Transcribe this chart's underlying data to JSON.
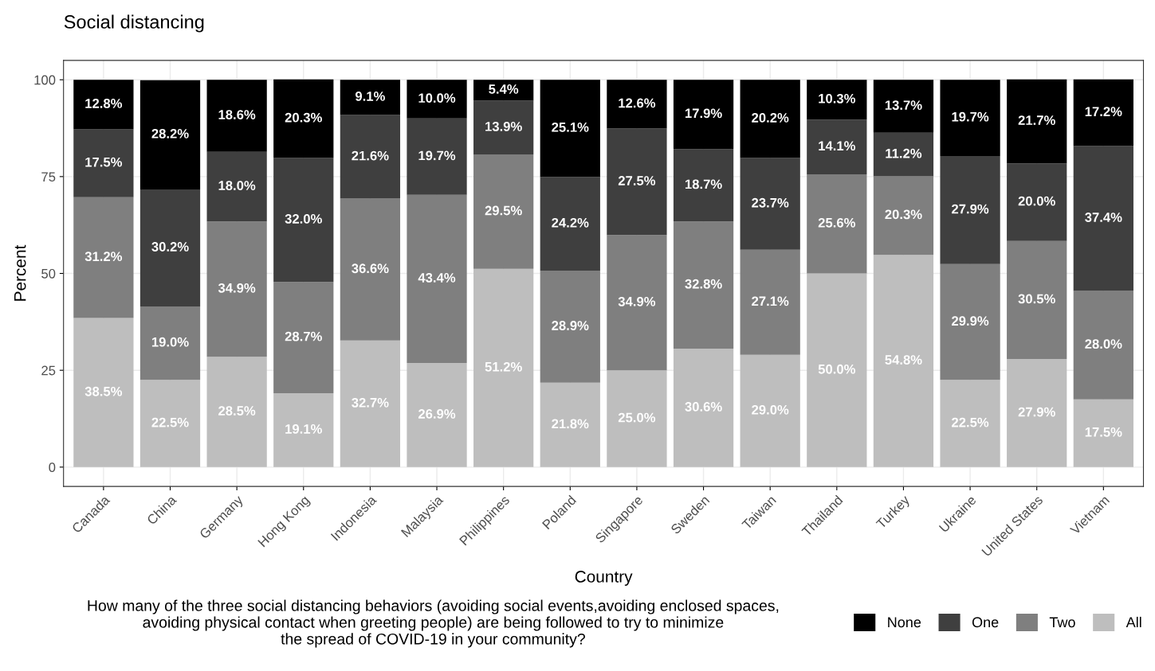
{
  "chart_data": {
    "type": "bar",
    "stacked": true,
    "title": "Social distancing",
    "xlabel": "Country",
    "ylabel": "Percent",
    "legend_title": "How many of the three social distancing behaviors (avoiding social events,avoiding enclosed spaces,\navoiding physical contact when greeting people) are being followed to try to minimize\nthe spread of COVID-19 in your community?",
    "categories": [
      "Canada",
      "China",
      "Germany",
      "Hong Kong",
      "Indonesia",
      "Malaysia",
      "Philippines",
      "Poland",
      "Singapore",
      "Sweden",
      "Taiwan",
      "Thailand",
      "Turkey",
      "Ukraine",
      "United States",
      "Vietnam"
    ],
    "series": [
      {
        "name": "All",
        "color": "#bebebe",
        "values": [
          38.5,
          22.5,
          28.5,
          19.1,
          32.7,
          26.9,
          51.2,
          21.8,
          25.0,
          30.6,
          29.0,
          50.0,
          54.8,
          22.5,
          27.9,
          17.5
        ],
        "value_labels": [
          "38.5%",
          "22.5%",
          "28.5%",
          "19.1%",
          "32.7%",
          "26.9%",
          "51.2%",
          "21.8%",
          "25.0%",
          "30.6%",
          "29.0%",
          "50.0%",
          "54.8%",
          "22.5%",
          "27.9%",
          "17.5%"
        ]
      },
      {
        "name": "Two",
        "color": "#7f7f7f",
        "values": [
          31.2,
          19.0,
          34.9,
          28.7,
          36.6,
          43.4,
          29.5,
          28.9,
          34.9,
          32.8,
          27.1,
          25.6,
          20.3,
          29.9,
          30.5,
          28.0
        ],
        "value_labels": [
          "31.2%",
          "19.0%",
          "34.9%",
          "28.7%",
          "36.6%",
          "43.4%",
          "29.5%",
          "28.9%",
          "34.9%",
          "32.8%",
          "27.1%",
          "25.6%",
          "20.3%",
          "29.9%",
          "30.5%",
          "28.0%"
        ]
      },
      {
        "name": "One",
        "color": "#3f3f3f",
        "values": [
          17.5,
          30.2,
          18.0,
          32.0,
          21.6,
          19.7,
          13.9,
          24.2,
          27.5,
          18.7,
          23.7,
          14.1,
          11.2,
          27.9,
          20.0,
          37.4
        ],
        "value_labels": [
          "17.5%",
          "30.2%",
          "18.0%",
          "32.0%",
          "21.6%",
          "19.7%",
          "13.9%",
          "24.2%",
          "27.5%",
          "18.7%",
          "23.7%",
          "14.1%",
          "11.2%",
          "27.9%",
          "20.0%",
          "37.4%"
        ]
      },
      {
        "name": "None",
        "color": "#000000",
        "values": [
          12.8,
          28.2,
          18.6,
          20.3,
          9.1,
          10.0,
          5.4,
          25.1,
          12.6,
          17.9,
          20.2,
          10.3,
          13.7,
          19.7,
          21.7,
          17.2
        ],
        "value_labels": [
          "12.8%",
          "28.2%",
          "18.6%",
          "20.3%",
          "9.1%",
          "10.0%",
          "5.4%",
          "25.1%",
          "12.6%",
          "17.9%",
          "20.2%",
          "10.3%",
          "13.7%",
          "19.7%",
          "21.7%",
          "17.2%"
        ]
      }
    ],
    "ylim": [
      -5,
      105
    ],
    "yticks": [
      0,
      25,
      50,
      75,
      100
    ],
    "grid": true,
    "legend": "bottom"
  }
}
